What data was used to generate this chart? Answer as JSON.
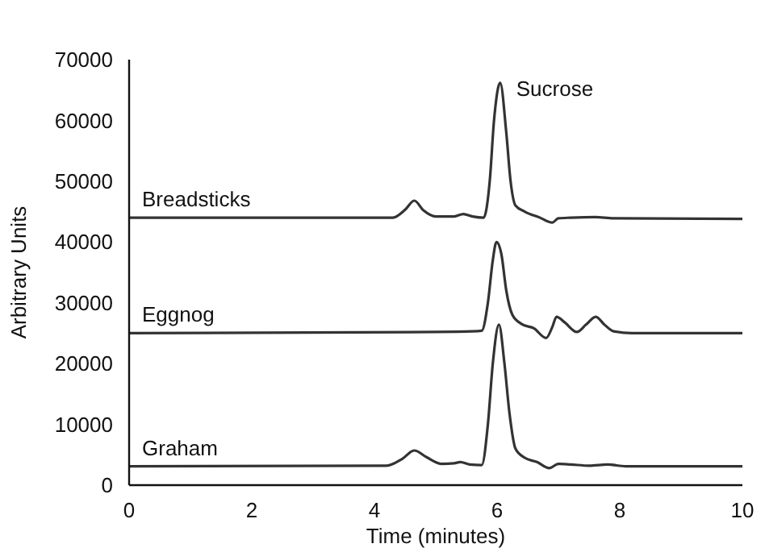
{
  "chart_data": {
    "type": "line",
    "xlabel": "Time (minutes)",
    "ylabel": "Arbitrary Units",
    "xlim": [
      0,
      10
    ],
    "xticks": [
      0,
      2,
      4,
      6,
      8,
      10
    ],
    "ylim": [
      0,
      70000
    ],
    "yticks": [
      0,
      10000,
      20000,
      30000,
      40000,
      50000,
      60000,
      70000
    ],
    "grid": false,
    "marker": "none",
    "line_style": "solid",
    "annotations": [
      {
        "text": "Sucrose",
        "x": 6.05,
        "y": 66200
      }
    ],
    "series": [
      {
        "name": "Breadsticks",
        "color": "#333333",
        "x": [
          0,
          4.3,
          4.5,
          4.65,
          4.8,
          5.0,
          5.3,
          5.45,
          5.6,
          5.78,
          5.88,
          5.95,
          6.05,
          6.15,
          6.22,
          6.3,
          6.45,
          6.7,
          6.9,
          7.0,
          7.2,
          7.6,
          7.9,
          10
        ],
        "values": [
          44000,
          44000,
          45300,
          46800,
          45200,
          44200,
          44200,
          44600,
          44200,
          44000,
          50000,
          60000,
          66200,
          58000,
          50000,
          46000,
          45000,
          44000,
          43200,
          43900,
          44000,
          44100,
          43900,
          43800
        ]
      },
      {
        "name": "Eggnog",
        "color": "#333333",
        "x": [
          0,
          5.0,
          5.6,
          5.75,
          5.85,
          5.93,
          5.99,
          6.07,
          6.15,
          6.25,
          6.4,
          6.6,
          6.8,
          6.9,
          6.97,
          7.1,
          7.3,
          7.45,
          7.61,
          7.75,
          7.9,
          8.2,
          10
        ],
        "values": [
          25000,
          25200,
          25300,
          25400,
          30000,
          37000,
          40000,
          38000,
          32000,
          28000,
          26500,
          25800,
          24200,
          26000,
          27700,
          26800,
          25200,
          26400,
          27700,
          26400,
          25300,
          25000,
          25000
        ]
      },
      {
        "name": "Graham",
        "color": "#333333",
        "x": [
          0,
          4.2,
          4.45,
          4.65,
          4.85,
          5.1,
          5.3,
          5.4,
          5.55,
          5.75,
          5.85,
          5.93,
          6.03,
          6.12,
          6.2,
          6.3,
          6.45,
          6.65,
          6.85,
          7.0,
          7.2,
          7.5,
          7.8,
          8.1,
          10
        ],
        "values": [
          3100,
          3200,
          4300,
          5700,
          4600,
          3500,
          3600,
          3800,
          3400,
          3300,
          10000,
          20000,
          26400,
          20000,
          12000,
          6000,
          4500,
          3800,
          2800,
          3500,
          3400,
          3200,
          3400,
          3100,
          3100
        ]
      }
    ]
  }
}
